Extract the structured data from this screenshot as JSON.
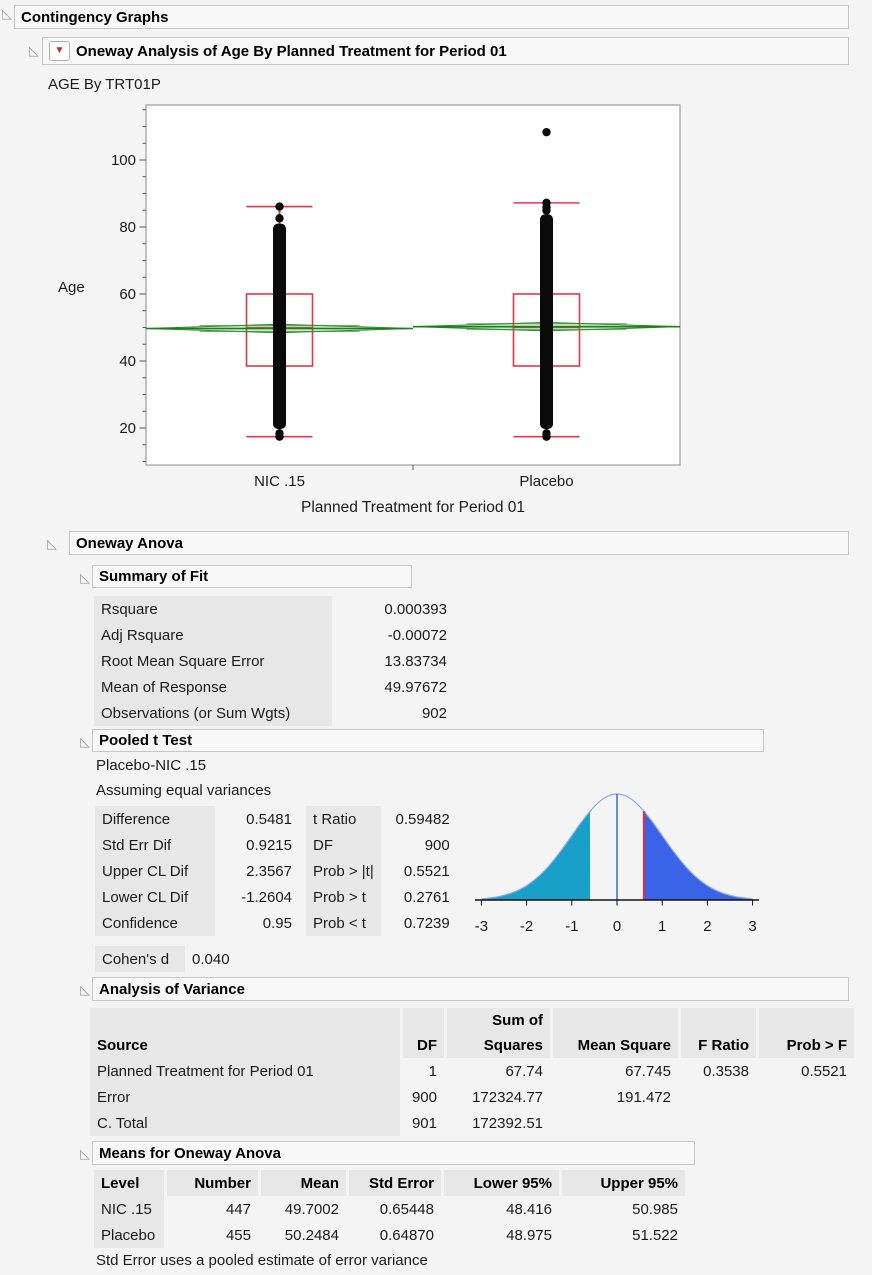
{
  "titles": {
    "root": "Contingency Graphs",
    "analysis": "Oneway Analysis of Age By Planned Treatment for Period 01",
    "subtitle": "AGE By TRT01P",
    "oneway_anova": "Oneway Anova",
    "summary_of_fit": "Summary of Fit",
    "pooled_t_test": "Pooled t Test",
    "anova": "Analysis of Variance",
    "means": "Means for Oneway Anova"
  },
  "chart_data": [
    {
      "type": "boxplot",
      "title": "",
      "xlabel": "Planned Treatment for Period 01",
      "ylabel": "Age",
      "ylim": [
        9,
        116
      ],
      "yticks": [
        20,
        40,
        60,
        80,
        100
      ],
      "minor_tick_step": 5,
      "categories": [
        "NIC .15",
        "Placebo"
      ],
      "groups": [
        {
          "label": "NIC .15",
          "n": 447,
          "mean": 49.7002,
          "lower95": 48.416,
          "upper95": 50.985,
          "median": 50,
          "q1": 38.5,
          "q3": 60,
          "whisker_low": 17.4,
          "whisker_high": 86.1,
          "dense_low": 19.7,
          "dense_high": 81,
          "detached_points": [
            86.1,
            82.6,
            18.4,
            17.4
          ]
        },
        {
          "label": "Placebo",
          "n": 455,
          "mean": 50.2484,
          "lower95": 48.975,
          "upper95": 51.522,
          "median": 50,
          "q1": 38.5,
          "q3": 60,
          "whisker_low": 17.4,
          "whisker_high": 87.2,
          "dense_low": 19.7,
          "dense_high": 83.8,
          "detached_points": [
            108.3,
            87.2,
            85.9,
            84.9,
            18.4,
            17.4
          ]
        }
      ],
      "colors": {
        "box": "#e2374b",
        "points": "#0a0a0a",
        "mean_green": "#2c8c2c",
        "mean_line": "#1d7d1d",
        "diamond_fill": "rgba(80,170,80,0.30)"
      }
    },
    {
      "type": "area",
      "subtype": "t-distribution-density",
      "xlim": [
        -3,
        3
      ],
      "xticks": [
        -3,
        -2,
        -1,
        0,
        1,
        2,
        3
      ],
      "t_ratio": 0.59482,
      "shade_left_below": -0.59482,
      "shade_right_above": 0.59482,
      "colors": {
        "left_fill": "#18a0c8",
        "right_fill": "#3a63e8",
        "outline": "#8aa6e8",
        "center_line": "#2b50c0",
        "t_line": "#e03038",
        "axis": "#111111"
      }
    }
  ],
  "summary_of_fit": {
    "rows": [
      [
        "Rsquare",
        "0.000393"
      ],
      [
        "Adj Rsquare",
        "-0.00072"
      ],
      [
        "Root Mean Square Error",
        "13.83734"
      ],
      [
        "Mean of Response",
        "49.97672"
      ],
      [
        "Observations (or Sum Wgts)",
        "902"
      ]
    ]
  },
  "pooled_t_test": {
    "comparison": "Placebo-NIC .15",
    "assumption": "Assuming equal variances",
    "left_rows": [
      [
        "Difference",
        "0.5481"
      ],
      [
        "Std Err Dif",
        "0.9215"
      ],
      [
        "Upper CL Dif",
        "2.3567"
      ],
      [
        "Lower CL Dif",
        "-1.2604"
      ],
      [
        "Confidence",
        "0.95"
      ]
    ],
    "right_rows": [
      [
        "t Ratio",
        "0.59482"
      ],
      [
        "DF",
        "900"
      ],
      [
        "Prob > |t|",
        "0.5521"
      ],
      [
        "Prob > t",
        "0.2761"
      ],
      [
        "Prob < t",
        "0.7239"
      ]
    ]
  },
  "cohens_d": {
    "rows": [
      [
        "Cohen's d",
        "0.040"
      ]
    ]
  },
  "anova": {
    "headers": [
      "Source",
      "DF",
      "Sum of\nSquares",
      "Mean Square",
      "F Ratio",
      "Prob > F"
    ],
    "rows": [
      [
        "Planned Treatment for Period 01",
        "1",
        "67.74",
        "67.745",
        "0.3538",
        "0.5521"
      ],
      [
        "Error",
        "900",
        "172324.77",
        "191.472",
        "",
        ""
      ],
      [
        "C. Total",
        "901",
        "172392.51",
        "",
        "",
        ""
      ]
    ]
  },
  "means": {
    "headers": [
      "Level",
      "Number",
      "Mean",
      "Std Error",
      "Lower 95%",
      "Upper 95%"
    ],
    "rows": [
      [
        "NIC .15",
        "447",
        "49.7002",
        "0.65448",
        "48.416",
        "50.985"
      ],
      [
        "Placebo",
        "455",
        "50.2484",
        "0.64870",
        "48.975",
        "51.522"
      ]
    ],
    "footnote": "Std Error uses a pooled estimate of error variance"
  }
}
